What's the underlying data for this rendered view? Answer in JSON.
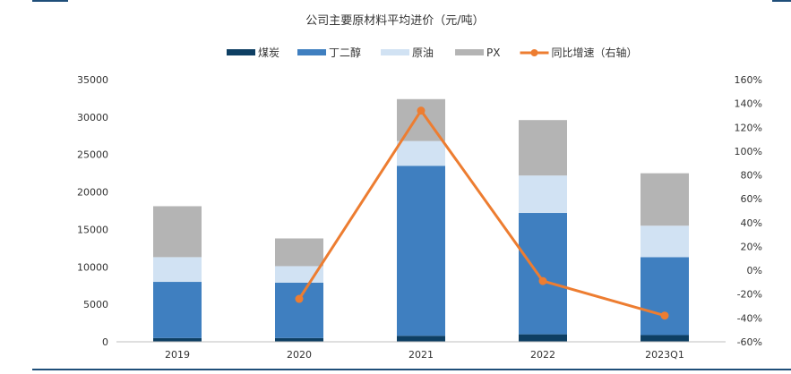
{
  "chart_data": {
    "type": "bar",
    "stacked": true,
    "title": "公司主要原材料平均进价（元/吨）",
    "categories": [
      "2019",
      "2020",
      "2021",
      "2022",
      "2023Q1"
    ],
    "series": [
      {
        "name": "煤炭",
        "type": "bar",
        "axis": "left",
        "color": "#0e3f63",
        "values": [
          500,
          500,
          800,
          1000,
          900
        ]
      },
      {
        "name": "丁二醇",
        "type": "bar",
        "axis": "left",
        "color": "#3f7fc0",
        "values": [
          7500,
          7400,
          22700,
          16200,
          10400
        ]
      },
      {
        "name": "原油",
        "type": "bar",
        "axis": "left",
        "color": "#d1e2f3",
        "values": [
          3300,
          2200,
          3300,
          5000,
          4200
        ]
      },
      {
        "name": "PX",
        "type": "bar",
        "axis": "left",
        "color": "#b4b4b4",
        "values": [
          6800,
          3700,
          5600,
          7400,
          7000
        ]
      },
      {
        "name": "同比增速（右轴）",
        "type": "line",
        "axis": "right",
        "color": "#ed7d31",
        "values": [
          null,
          -24,
          134,
          -9,
          -38
        ]
      }
    ],
    "ylim_left": [
      0,
      35000
    ],
    "yticks_left": [
      "0",
      "5000",
      "10000",
      "15000",
      "20000",
      "25000",
      "30000",
      "35000"
    ],
    "ylim_right": [
      -60,
      160
    ],
    "yticks_right": [
      "-60%",
      "-40%",
      "-20%",
      "0%",
      "20%",
      "40%",
      "60%",
      "80%",
      "100%",
      "120%",
      "140%",
      "160%"
    ],
    "grid": false,
    "legend_position": "top-center"
  }
}
